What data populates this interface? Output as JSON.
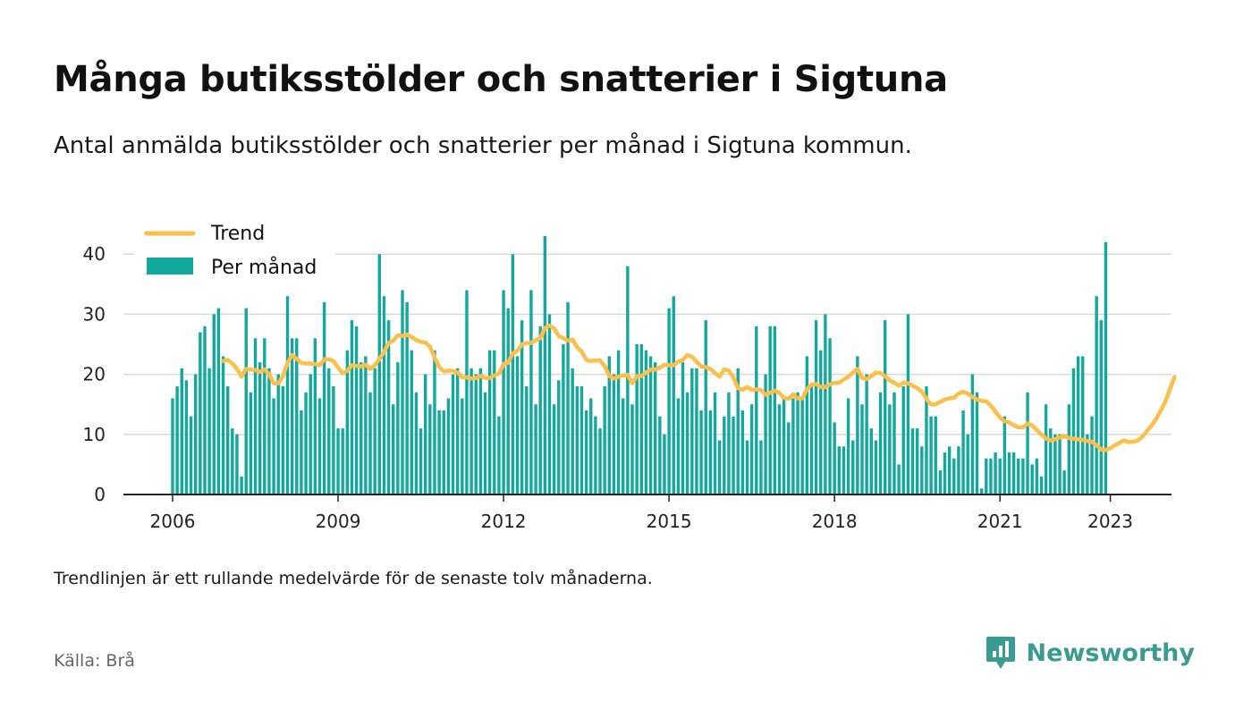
{
  "title": "Många butiksstölder och snatterier i Sigtuna",
  "subtitle": "Antal anmälda butiksstölder och snatterier per månad i Sigtuna kommun.",
  "footnote": "Trendlinjen är ett rullande medelvärde för de senaste tolv månaderna.",
  "source": "Källa: Brå",
  "brand": {
    "name": "Newsworthy",
    "icon": "newsworthy-logo-icon",
    "color": "#3a9b93"
  },
  "colors": {
    "bars": "#13a89e",
    "trend": "#fcbf49",
    "grid": "#d9d9d9",
    "axis": "#222222"
  },
  "chart_data": {
    "type": "bar",
    "start_month": "2006-01",
    "x_ticks": [
      "2006",
      "2009",
      "2012",
      "2015",
      "2018",
      "2021",
      "2023"
    ],
    "y_ticks": [
      0,
      10,
      20,
      30,
      40
    ],
    "ylim": [
      0,
      43
    ],
    "grid": true,
    "legend_placement": "top-left",
    "series": [
      {
        "name": "Per månad",
        "type": "bar",
        "values": [
          16,
          18,
          21,
          19,
          13,
          20,
          27,
          28,
          21,
          30,
          31,
          23,
          18,
          11,
          10,
          3,
          31,
          17,
          26,
          22,
          26,
          21,
          16,
          20,
          18,
          33,
          26,
          26,
          14,
          17,
          20,
          26,
          16,
          32,
          21,
          18,
          11,
          11,
          24,
          29,
          28,
          22,
          23,
          17,
          21,
          40,
          33,
          29,
          15,
          22,
          34,
          32,
          24,
          17,
          11,
          20,
          15,
          24,
          14,
          14,
          16,
          20,
          21,
          16,
          34,
          21,
          20,
          21,
          17,
          24,
          24,
          13,
          34,
          31,
          40,
          23,
          29,
          18,
          34,
          15,
          28,
          43,
          30,
          15,
          19,
          25,
          32,
          21,
          18,
          18,
          14,
          16,
          13,
          11,
          18,
          23,
          20,
          24,
          16,
          38,
          15,
          25,
          25,
          24,
          23,
          22,
          13,
          10,
          31,
          33,
          16,
          22,
          17,
          21,
          21,
          14,
          29,
          14,
          17,
          9,
          13,
          17,
          13,
          21,
          14,
          9,
          15,
          28,
          9,
          20,
          28,
          28,
          15,
          16,
          12,
          16,
          17,
          16,
          23,
          18,
          29,
          24,
          30,
          26,
          12,
          8,
          8,
          16,
          9,
          23,
          15,
          20,
          11,
          9,
          17,
          29,
          15,
          17,
          5,
          18,
          30,
          11,
          11,
          8,
          18,
          13,
          13,
          4,
          7,
          8,
          6,
          8,
          14,
          10,
          20,
          17,
          1,
          6,
          6,
          7,
          6,
          13,
          7,
          7,
          6,
          6,
          17,
          5,
          6,
          3,
          15,
          11,
          10,
          10,
          4,
          15,
          21,
          23,
          23,
          10,
          13,
          33,
          29,
          42
        ]
      },
      {
        "name": "Trend",
        "type": "line",
        "values": [
          null,
          null,
          null,
          null,
          null,
          null,
          null,
          null,
          null,
          null,
          null,
          22.2,
          22.4,
          21.8,
          20.9,
          19.6,
          20.9,
          20.8,
          20.7,
          20.4,
          20.8,
          20.0,
          18.5,
          18.5,
          19.7,
          21.9,
          23.2,
          22.6,
          21.9,
          21.8,
          21.8,
          21.7,
          21.5,
          22.5,
          22.5,
          22.2,
          21.1,
          20.2,
          20.6,
          21.5,
          21.4,
          21.3,
          21.6,
          20.9,
          21.5,
          22.6,
          23.7,
          25.2,
          25.6,
          26.5,
          26.4,
          26.6,
          26.2,
          25.7,
          25.4,
          25.3,
          24.6,
          22.8,
          21.2,
          20.5,
          20.6,
          20.6,
          20.3,
          19.5,
          19.5,
          19.3,
          19.4,
          19.7,
          19.4,
          19.4,
          19.8,
          20.1,
          21.7,
          21.9,
          23.5,
          23.9,
          25.0,
          25.2,
          25.2,
          25.7,
          26.0,
          27.7,
          28.1,
          27.6,
          26.4,
          26.0,
          25.6,
          25.8,
          24.5,
          23.8,
          22.4,
          22.2,
          22.3,
          22.3,
          21.4,
          19.7,
          19.3,
          19.6,
          19.8,
          19.9,
          18.5,
          19.7,
          19.7,
          20.3,
          20.8,
          20.8,
          21.1,
          21.6,
          21.5,
          21.5,
          22.1,
          22.4,
          23.2,
          22.9,
          22.1,
          21.3,
          21.2,
          20.9,
          20.2,
          19.6,
          20.8,
          20.6,
          19.5,
          17.7,
          17.4,
          17.9,
          17.4,
          17.5,
          17.4,
          16.6,
          16.9,
          17.3,
          16.9,
          16.1,
          15.9,
          16.7,
          16.0,
          16.0,
          17.5,
          18.3,
          18.4,
          17.9,
          17.9,
          18.3,
          18.6,
          18.6,
          19.1,
          19.6,
          20.3,
          20.9,
          19.4,
          19.2,
          19.7,
          20.3,
          20.2,
          19.7,
          19.0,
          18.6,
          18.1,
          18.6,
          18.5,
          18.1,
          17.7,
          17.1,
          15.9,
          15.0,
          15.0,
          15.4,
          15.8,
          16.0,
          16.1,
          16.8,
          17.1,
          16.8,
          16.2,
          15.8,
          15.6,
          15.5,
          14.8,
          13.8,
          12.8,
          12.2,
          12.0,
          11.5,
          11.2,
          11.2,
          11.8,
          11.5,
          10.7,
          10.0,
          9.3,
          9.0,
          9.2,
          9.5,
          9.7,
          9.4,
          9.3,
          9.2,
          9.1,
          8.9,
          8.8,
          8.2,
          7.5,
          7.4,
          7.7,
          8.2,
          8.6,
          9.0,
          8.7,
          8.8,
          9.0,
          9.6,
          10.6,
          11.5,
          12.6,
          14.0,
          15.5,
          17.6,
          19.6
        ]
      }
    ]
  }
}
